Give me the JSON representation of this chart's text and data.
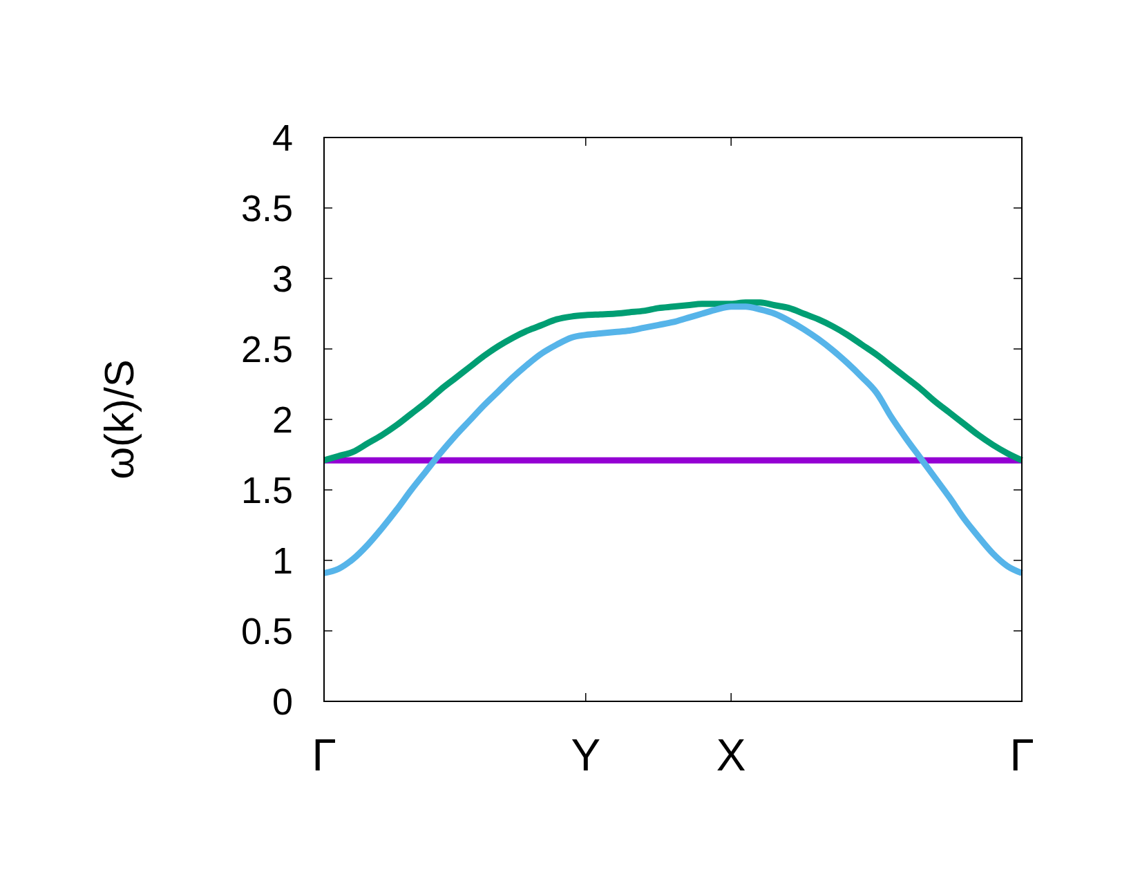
{
  "chart_data": {
    "type": "line",
    "ylabel": "ω(k)/S",
    "ylim": [
      0,
      4
    ],
    "categories": [
      "Γ",
      null,
      null,
      null,
      null,
      null,
      null,
      null,
      null,
      null,
      null,
      null,
      null,
      null,
      null,
      null,
      null,
      null,
      "Y",
      null,
      null,
      null,
      null,
      null,
      null,
      null,
      null,
      null,
      "X",
      null,
      null,
      null,
      null,
      null,
      null,
      null,
      null,
      null,
      null,
      null,
      null,
      null,
      null,
      null,
      null,
      null,
      null,
      null,
      "Γ"
    ],
    "yticks": [
      0,
      0.5,
      1,
      1.5,
      2,
      2.5,
      3,
      3.5,
      4
    ],
    "grid": false,
    "marker": "none",
    "line_style": "solid",
    "series": [
      {
        "color": "#9400d3",
        "values": [
          1.71,
          1.71,
          1.71,
          1.71,
          1.71,
          1.71,
          1.71,
          1.71,
          1.71,
          1.71,
          1.71,
          1.71,
          1.71,
          1.71,
          1.71,
          1.71,
          1.71,
          1.71,
          1.71,
          1.71,
          1.71,
          1.71,
          1.71,
          1.71,
          1.71,
          1.71,
          1.71,
          1.71,
          1.71,
          1.71,
          1.71,
          1.71,
          1.71,
          1.71,
          1.71,
          1.71,
          1.71,
          1.71,
          1.71,
          1.71,
          1.71,
          1.71,
          1.71,
          1.71,
          1.71,
          1.71,
          1.71,
          1.71,
          1.71
        ]
      },
      {
        "color": "#009e73",
        "values": [
          1.71,
          1.74,
          1.77,
          1.83,
          1.89,
          1.96,
          2.04,
          2.12,
          2.21,
          2.29,
          2.37,
          2.45,
          2.52,
          2.58,
          2.63,
          2.67,
          2.71,
          2.73,
          2.74,
          2.745,
          2.75,
          2.76,
          2.77,
          2.79,
          2.8,
          2.81,
          2.82,
          2.82,
          2.82,
          2.83,
          2.83,
          2.81,
          2.79,
          2.75,
          2.71,
          2.66,
          2.6,
          2.53,
          2.46,
          2.38,
          2.3,
          2.22,
          2.13,
          2.05,
          1.97,
          1.89,
          1.82,
          1.76,
          1.71
        ]
      },
      {
        "color": "#56b4e9",
        "values": [
          0.91,
          0.94,
          1.01,
          1.11,
          1.23,
          1.36,
          1.5,
          1.63,
          1.76,
          1.88,
          1.99,
          2.1,
          2.2,
          2.3,
          2.39,
          2.47,
          2.53,
          2.58,
          2.6,
          2.61,
          2.62,
          2.63,
          2.65,
          2.67,
          2.69,
          2.72,
          2.75,
          2.78,
          2.8,
          2.8,
          2.78,
          2.75,
          2.7,
          2.64,
          2.57,
          2.49,
          2.4,
          2.3,
          2.19,
          2.02,
          1.87,
          1.73,
          1.59,
          1.45,
          1.3,
          1.17,
          1.05,
          0.96,
          0.91
        ]
      }
    ]
  }
}
